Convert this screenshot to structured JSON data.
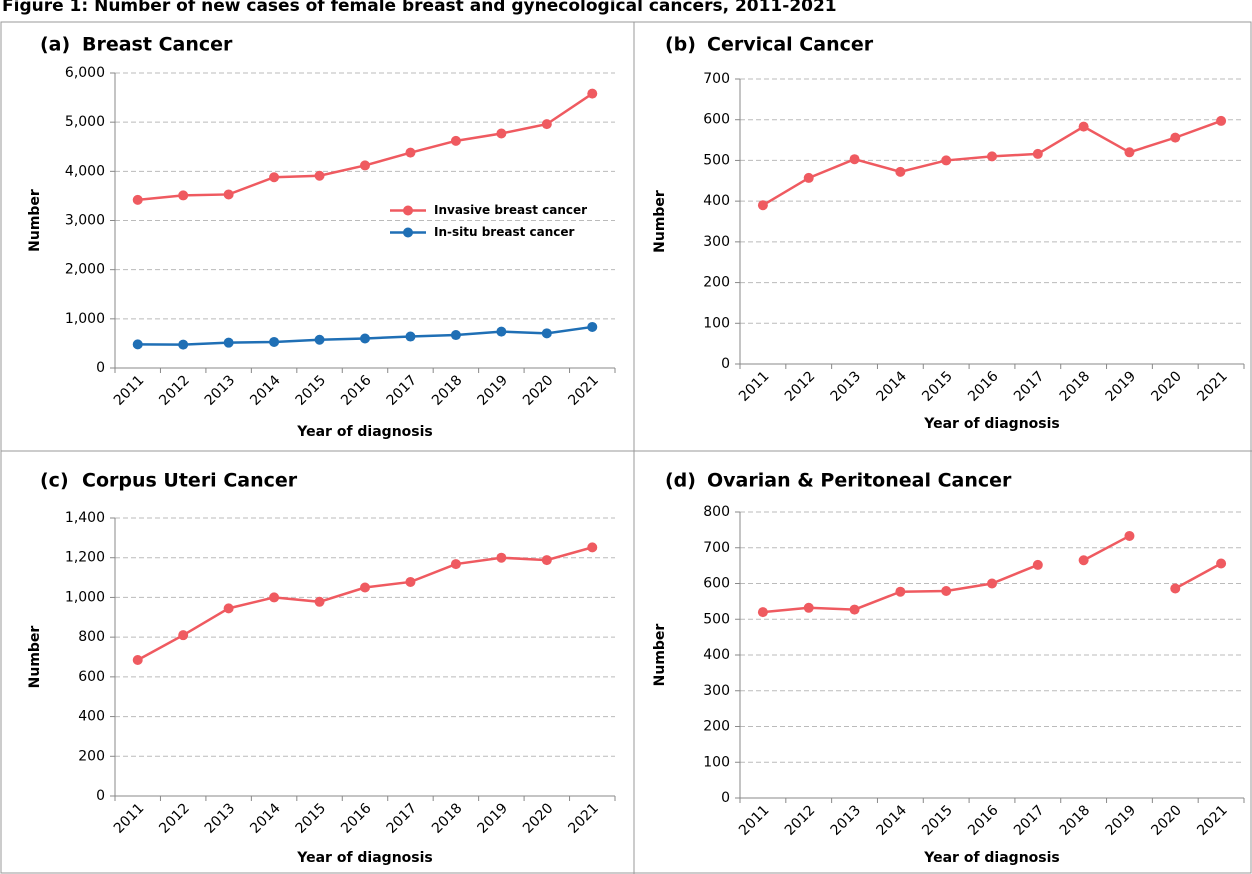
{
  "title": "Figure 1: Number of new cases of female breast and gynecological cancers, 2011-2021",
  "chart_data": [
    {
      "type": "line",
      "label": "(a)",
      "title": "Breast Cancer",
      "x_label": "Year of diagnosis",
      "y_label": "Number",
      "categories": [
        "2011",
        "2012",
        "2013",
        "2014",
        "2015",
        "2016",
        "2017",
        "2018",
        "2019",
        "2020",
        "2021"
      ],
      "series": [
        {
          "name": "Invasive breast cancer",
          "color": "#ef5a60",
          "values": [
            3420,
            3510,
            3530,
            3880,
            3910,
            4120,
            4380,
            4620,
            4770,
            4960,
            5580
          ]
        },
        {
          "name": "In-situ breast cancer",
          "color": "#1f6fb5",
          "values": [
            480,
            475,
            515,
            530,
            575,
            600,
            640,
            670,
            740,
            705,
            835
          ]
        }
      ],
      "ylim": [
        0,
        6000
      ],
      "yticks": [
        0,
        {
          "value": 1000,
          "label": "1,000"
        },
        {
          "value": 2000,
          "label": "2,000"
        },
        {
          "value": 3000,
          "label": "3,000"
        },
        {
          "value": 4000,
          "label": "4,000"
        },
        {
          "value": 5000,
          "label": "5,000"
        },
        {
          "value": 6000,
          "label": "6,000"
        }
      ],
      "grid": true,
      "legend": "right"
    },
    {
      "type": "line",
      "label": "(b)",
      "title": "Cervical Cancer",
      "x_label": "Year of diagnosis",
      "y_label": "Number",
      "categories": [
        "2011",
        "2012",
        "2013",
        "2014",
        "2015",
        "2016",
        "2017",
        "2018",
        "2019",
        "2020",
        "2021"
      ],
      "series": [
        {
          "color": "#ef5a60",
          "values": [
            390,
            457,
            503,
            472,
            500,
            510,
            516,
            583,
            520,
            556,
            597
          ]
        }
      ],
      "ylim": [
        0,
        700
      ],
      "yticks": [
        0,
        100,
        200,
        300,
        400,
        500,
        600,
        700
      ],
      "grid": true
    },
    {
      "type": "line",
      "label": "(c)",
      "title": "Corpus Uteri Cancer",
      "x_label": "Year of diagnosis",
      "y_label": "Number",
      "categories": [
        "2011",
        "2012",
        "2013",
        "2014",
        "2015",
        "2016",
        "2017",
        "2018",
        "2019",
        "2020",
        "2021"
      ],
      "series": [
        {
          "color": "#ef5a60",
          "values": [
            685,
            810,
            945,
            1000,
            978,
            1050,
            1078,
            1168,
            1200,
            1188,
            1252
          ]
        }
      ],
      "ylim": [
        0,
        1400
      ],
      "yticks": [
        0,
        200,
        400,
        600,
        800,
        {
          "value": 1000,
          "label": "1,000"
        },
        {
          "value": 1200,
          "label": "1,200"
        },
        {
          "value": 1400,
          "label": "1,400"
        }
      ],
      "grid": true
    },
    {
      "type": "line",
      "label": "(d)",
      "title": "Ovarian & Peritoneal Cancer",
      "x_label": "Year of diagnosis",
      "y_label": "Number",
      "categories": [
        "2011",
        "2012",
        "2013",
        "2014",
        "2015",
        "2016",
        "2017",
        "2018",
        "2019",
        "2020",
        "2021"
      ],
      "series": [
        {
          "color": "#ef5a60",
          "values": [
            520,
            532,
            527,
            577,
            579,
            600,
            652,
            null,
            null,
            null,
            null
          ]
        },
        {
          "color": "#ef5a60",
          "values": [
            null,
            null,
            null,
            null,
            null,
            null,
            null,
            665,
            733,
            null,
            null
          ]
        },
        {
          "color": "#ef5a60",
          "values": [
            null,
            null,
            null,
            null,
            null,
            null,
            null,
            null,
            null,
            586,
            656
          ]
        }
      ],
      "ylim": [
        0,
        800
      ],
      "yticks": [
        0,
        100,
        200,
        300,
        400,
        500,
        600,
        700,
        800
      ],
      "grid": true
    }
  ]
}
